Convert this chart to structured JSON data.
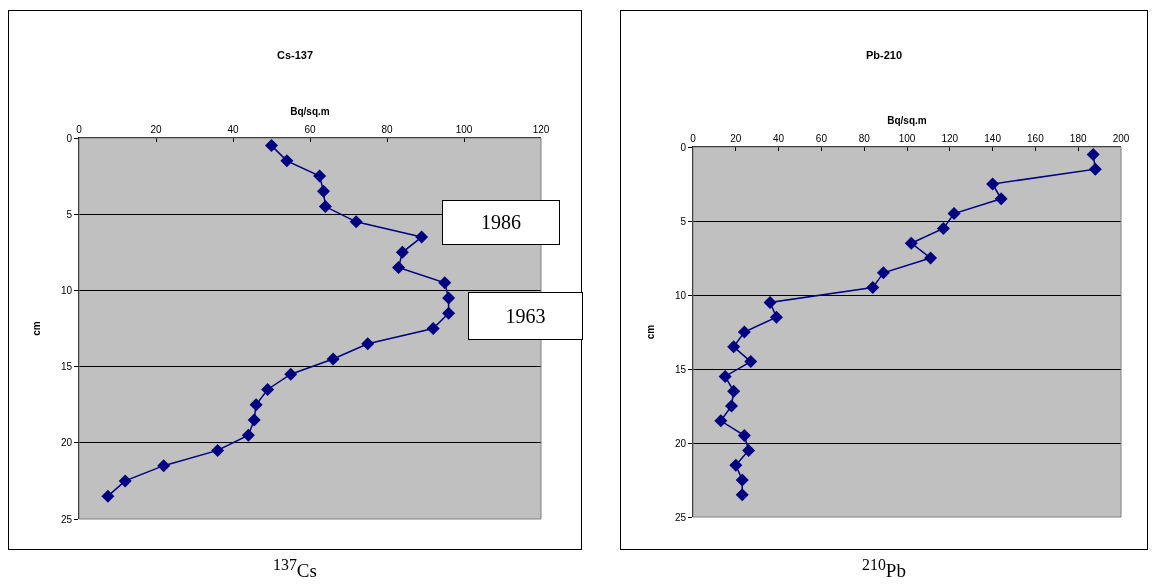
{
  "chart_data": [
    {
      "type": "line",
      "title": "Cs-137",
      "subtitle": "$^{137}$Cs",
      "xlabel": "Bq/sq.m",
      "ylabel": "cm",
      "xlim": [
        0,
        120
      ],
      "xticks": [
        0,
        20,
        40,
        60,
        80,
        100,
        120
      ],
      "ylim": [
        25,
        0
      ],
      "yticks": [
        0,
        5,
        10,
        15,
        20,
        25
      ],
      "grid": "y",
      "marker": "diamond",
      "line_style": "solid",
      "series": [
        {
          "color": "#000080",
          "x": [
            50,
            54,
            62.5,
            63.5,
            64,
            72,
            89,
            84,
            83,
            95,
            96,
            96,
            92,
            75,
            66,
            55,
            49,
            46,
            45.5,
            44,
            36,
            22,
            12,
            7.5
          ],
          "values": [
            0.5,
            1.5,
            2.5,
            3.5,
            4.5,
            5.5,
            6.5,
            7.5,
            8.5,
            9.5,
            10.5,
            11.5,
            12.5,
            13.5,
            14.5,
            15.5,
            16.5,
            17.5,
            18.5,
            19.5,
            20.5,
            21.5,
            22.5,
            23.5
          ]
        }
      ],
      "annotations": [
        "1986",
        "1963"
      ]
    },
    {
      "type": "line",
      "title": "Pb-210",
      "subtitle": "$^{210}$Pb",
      "xlabel": "Bq/sq.m",
      "ylabel": "cm",
      "xlim": [
        0,
        200
      ],
      "xticks": [
        0,
        20,
        40,
        60,
        80,
        100,
        120,
        140,
        160,
        180,
        200
      ],
      "ylim": [
        25,
        0
      ],
      "yticks": [
        0,
        5,
        10,
        15,
        20,
        25
      ],
      "grid": "y",
      "marker": "diamond",
      "line_style": "solid",
      "series": [
        {
          "color": "#000080",
          "x": [
            187,
            188,
            140,
            144,
            122,
            117,
            102,
            111,
            89,
            84,
            36,
            39,
            24,
            19,
            27,
            15,
            19,
            18,
            13,
            24,
            26,
            20,
            23,
            23
          ],
          "values": [
            0.5,
            1.5,
            2.5,
            3.5,
            4.5,
            5.5,
            6.5,
            7.5,
            8.5,
            9.5,
            10.5,
            11.5,
            12.5,
            13.5,
            14.5,
            15.5,
            16.5,
            17.5,
            18.5,
            19.5,
            20.5,
            21.5,
            22.5,
            23.5
          ]
        }
      ]
    }
  ]
}
